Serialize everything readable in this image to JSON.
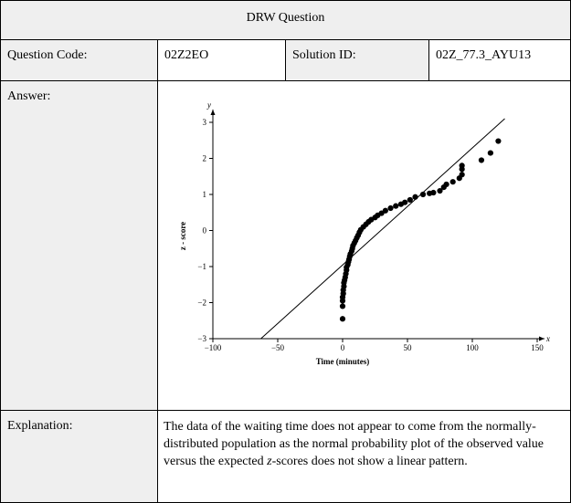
{
  "header": {
    "title": "DRW Question"
  },
  "meta": {
    "question_code_label": "Question Code:",
    "question_code_value": "02Z2EO",
    "solution_id_label": "Solution ID:",
    "solution_id_value": "02Z_77.3_AYU13"
  },
  "answer": {
    "label": "Answer:"
  },
  "explanation": {
    "label": "Explanation:",
    "text_before": "The data of the waiting time does not appear to come from the normally-distributed population as the normal probability plot of the observed value versus the expected ",
    "text_italic": "z",
    "text_after": "-scores does not show a linear pattern."
  },
  "chart_data": {
    "type": "scatter",
    "xlabel": "Time (minutes)",
    "ylabel": "z - score",
    "x_axis_name": "x",
    "y_axis_name": "y",
    "xlim": [
      -100,
      150
    ],
    "ylim": [
      -3,
      3
    ],
    "x_ticks": [
      -100,
      -50,
      0,
      50,
      100,
      150
    ],
    "y_ticks": [
      -3,
      -2,
      -1,
      0,
      1,
      2,
      3
    ],
    "x_tick_labels": [
      "−100",
      "−50",
      "0",
      "50",
      "100",
      "150"
    ],
    "y_tick_labels": [
      "−3",
      "−2",
      "−1",
      "0",
      "1",
      "2",
      "3"
    ],
    "points": [
      [
        0,
        -2.45
      ],
      [
        0,
        -2.1
      ],
      [
        0,
        -1.95
      ],
      [
        0,
        -1.85
      ],
      [
        0.5,
        -1.75
      ],
      [
        0.5,
        -1.65
      ],
      [
        1,
        -1.55
      ],
      [
        1,
        -1.45
      ],
      [
        1.5,
        -1.38
      ],
      [
        2,
        -1.3
      ],
      [
        2.5,
        -1.2
      ],
      [
        3,
        -1.1
      ],
      [
        3,
        -1.02
      ],
      [
        4,
        -0.95
      ],
      [
        4.5,
        -0.87
      ],
      [
        5,
        -0.8
      ],
      [
        5.5,
        -0.72
      ],
      [
        6,
        -0.65
      ],
      [
        7,
        -0.57
      ],
      [
        7.5,
        -0.5
      ],
      [
        8,
        -0.42
      ],
      [
        9,
        -0.35
      ],
      [
        10,
        -0.28
      ],
      [
        11,
        -0.2
      ],
      [
        12,
        -0.13
      ],
      [
        13,
        -0.05
      ],
      [
        14,
        0.02
      ],
      [
        16,
        0.1
      ],
      [
        18,
        0.17
      ],
      [
        20,
        0.24
      ],
      [
        22,
        0.3
      ],
      [
        25,
        0.36
      ],
      [
        27,
        0.42
      ],
      [
        30,
        0.48
      ],
      [
        33,
        0.55
      ],
      [
        37,
        0.62
      ],
      [
        41,
        0.68
      ],
      [
        45,
        0.73
      ],
      [
        48,
        0.78
      ],
      [
        52,
        0.85
      ],
      [
        56,
        0.93
      ],
      [
        62,
        1.0
      ],
      [
        67,
        1.03
      ],
      [
        70,
        1.05
      ],
      [
        75,
        1.1
      ],
      [
        78,
        1.2
      ],
      [
        80,
        1.28
      ],
      [
        85,
        1.35
      ],
      [
        90,
        1.45
      ],
      [
        92,
        1.55
      ],
      [
        92,
        1.7
      ],
      [
        92,
        1.8
      ],
      [
        107,
        1.95
      ],
      [
        114,
        2.15
      ],
      [
        120,
        2.48
      ]
    ],
    "reference_line": [
      [
        -63,
        -3
      ],
      [
        125,
        3.1
      ]
    ]
  }
}
